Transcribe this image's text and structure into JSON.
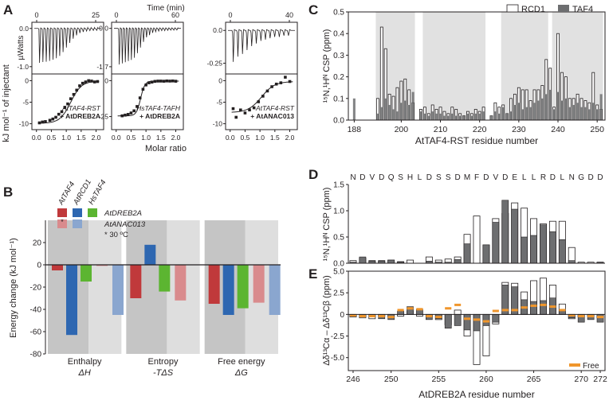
{
  "panel_labels": [
    "A",
    "B",
    "C",
    "D",
    "E"
  ],
  "colors": {
    "red": "#c0393b",
    "red_light": "#d98b8d",
    "blue": "#2e67b1",
    "blue_light": "#8aa6cf",
    "green": "#5cb531",
    "dark_grey": "#6d6e70",
    "orange": "#f0962c",
    "bg_dark": "#c5c5c5",
    "bg_light": "#dedede",
    "shade": "#e1e1e1"
  },
  "chart_data": [
    {
      "id": "A",
      "type": "line",
      "title": "Time (min)",
      "ylabel_top": "µWatts",
      "ylabel_bottom": "kJ mol⁻¹ of injectant",
      "xlabel": "Molar ratio",
      "xticks_bottom": [
        "0.0",
        "0.5",
        "1.0",
        "1.5",
        "2.0"
      ],
      "subpanels": [
        {
          "time_ticks": [
            "0",
            "25"
          ],
          "time_max": 25,
          "top_yticks": [
            "0.0",
            "-1.0"
          ],
          "top_ylim": [
            -1.15,
            0.12
          ],
          "bottom_yticks": [
            "0",
            "-5",
            "-10"
          ],
          "bottom_ylim": [
            -11,
            1
          ],
          "label_line1": "AtTAF4-RST",
          "label_line2": "+ AtDREB2A",
          "label_color": "red",
          "peaks": [
            -0.9,
            -0.88,
            -0.87,
            -0.85,
            -0.82,
            -0.78,
            -0.72,
            -0.62,
            -0.5,
            -0.38,
            -0.27,
            -0.18,
            -0.12,
            -0.09,
            -0.07,
            -0.06,
            -0.05,
            -0.05
          ],
          "points_x": [
            0.1,
            0.2,
            0.3,
            0.45,
            0.55,
            0.65,
            0.75,
            0.85,
            0.95,
            1.05,
            1.15,
            1.25,
            1.35,
            1.45,
            1.55,
            1.65,
            1.75,
            1.85,
            1.95,
            2.05
          ],
          "points_y": [
            -9.8,
            -9.6,
            -9.5,
            -9.2,
            -8.9,
            -8.5,
            -7.8,
            -7.2,
            -6.2,
            -5.4,
            -4.2,
            -3.2,
            -2.2,
            -1.2,
            -0.6,
            -0.3,
            0.0,
            -0.1,
            -0.3,
            -0.2
          ],
          "fit": {
            "bottom": -9.9,
            "top": -0.1,
            "mid": 1.15,
            "width": 0.18
          }
        },
        {
          "time_ticks": [
            "0",
            "60"
          ],
          "time_max": 60,
          "top_yticks": [
            "0.0",
            "-1.7"
          ],
          "top_ylim": [
            -1.95,
            0.2
          ],
          "bottom_yticks": [
            "0",
            "-25"
          ],
          "bottom_ylim": [
            -33,
            3
          ],
          "label_line1": "HsTAF4-TAFH",
          "label_line2": "+ AtDREB2A",
          "label_color": "green",
          "peaks": [
            -1.6,
            -1.55,
            -1.5,
            -1.45,
            -1.4,
            -1.3,
            -1.1,
            -0.85,
            -0.6,
            -0.4,
            -0.3,
            -0.2,
            -0.15,
            -0.12,
            -0.1,
            -0.1,
            -0.09,
            -0.08,
            -0.08,
            -0.07
          ],
          "points_x": [
            0.2,
            0.3,
            0.4,
            0.5,
            0.6,
            0.7,
            0.8,
            0.9,
            1.0,
            1.1,
            1.2,
            1.3,
            1.4,
            1.5,
            1.6,
            1.7,
            1.8,
            1.9,
            2.0
          ],
          "points_y": [
            -24.5,
            -24,
            -23.5,
            -22.5,
            -21,
            -18,
            -12,
            -6,
            -3,
            -1.5,
            -1,
            -0.5,
            -0.3,
            -0.3,
            -0.4,
            -0.2,
            -0.3,
            -0.2,
            -0.4
          ],
          "fit": {
            "bottom": -24.5,
            "top": -0.3,
            "mid": 0.82,
            "width": 0.07
          }
        },
        {
          "time_ticks": [
            "0",
            "40"
          ],
          "time_max": 40,
          "top_yticks": [
            "0.0",
            "-0.25"
          ],
          "top_ylim": [
            -0.32,
            0.05
          ],
          "bottom_yticks": [
            "0",
            "-5",
            "-10"
          ],
          "bottom_ylim": [
            -11,
            1
          ],
          "label_line1": "AtTAF4-RST",
          "label_line2": "+ AtANAC013",
          "label_color": "red_light",
          "peaks": [
            -0.24,
            -0.2,
            -0.18,
            -0.15,
            -0.12,
            -0.1,
            -0.08,
            -0.07,
            -0.06,
            -0.05,
            -0.05,
            -0.04,
            -0.04
          ],
          "points_x": [
            0.1,
            0.2,
            0.35,
            0.5,
            0.65,
            0.8,
            0.95,
            1.1,
            1.25,
            1.4,
            1.55,
            1.7,
            1.85,
            2.0
          ],
          "points_y": [
            -6.5,
            -8.5,
            -6.8,
            -7.5,
            -6.8,
            -6.3,
            -4.9,
            -3.6,
            -2.4,
            -1.4,
            -0.8,
            -0.5,
            0.8,
            -0.2
          ],
          "fit": {
            "bottom": -7.4,
            "top": -0.2,
            "mid": 1.05,
            "width": 0.22
          }
        }
      ]
    },
    {
      "id": "B",
      "type": "bar",
      "ylabel": "Energy change (kJ mol⁻¹)",
      "ylim": [
        -80,
        40
      ],
      "yticks": [
        20,
        0,
        -20,
        -40,
        -60,
        -80
      ],
      "groups": [
        {
          "label": "Enthalpy",
          "symbol": "ΔH"
        },
        {
          "label": "Entropy",
          "symbol": "-TΔS"
        },
        {
          "label": "Free energy",
          "symbol": "ΔG"
        }
      ],
      "series": [
        {
          "name": "AtTAF4 + AtDREB2A",
          "color": "red",
          "values": [
            -5,
            -30,
            -35
          ]
        },
        {
          "name": "AtRCD1 + AtDREB2A",
          "color": "blue",
          "values": [
            -63,
            18,
            -45
          ]
        },
        {
          "name": "HsTAF4 + AtDREB2A",
          "color": "green",
          "values": [
            -15,
            -24,
            -39
          ]
        },
        {
          "name": "AtTAF4 + AtANAC013",
          "color": "red_light",
          "values": [
            -1,
            -32,
            -34
          ]
        },
        {
          "name": "AtRCD1 + AtANAC013",
          "color": "blue_light",
          "values": [
            -45,
            0,
            -45
          ]
        }
      ],
      "legend": {
        "columns": [
          "AtTAF4",
          "AtRCD1",
          "HsTAF4"
        ],
        "rows": [
          "AtDREB2A",
          "AtANAC013"
        ],
        "note": "* 30 ºC",
        "star_mark": "*"
      }
    },
    {
      "id": "C",
      "type": "bar",
      "ylabel": "¹⁵N,¹Hᴺ CSP (ppm)",
      "xlabel": "AtTAF4-RST residue number",
      "ylim": [
        0,
        0.5
      ],
      "yticks": [
        "0.0",
        "0.1",
        "0.2",
        "0.3",
        "0.4",
        "0.5"
      ],
      "xlim": [
        186.5,
        252
      ],
      "xticks": [
        188,
        200,
        210,
        220,
        230,
        240,
        250
      ],
      "shaded_ranges": [
        [
          193.5,
          203.5
        ],
        [
          205.5,
          221.5
        ],
        [
          225.5,
          237.5
        ],
        [
          238.5,
          251.5
        ]
      ],
      "legend": [
        "RCD1",
        "TAF4"
      ],
      "residues": [
        188,
        189,
        190,
        191,
        192,
        193,
        194,
        195,
        196,
        197,
        198,
        199,
        200,
        201,
        202,
        203,
        204,
        205,
        206,
        207,
        208,
        209,
        210,
        211,
        212,
        213,
        214,
        215,
        216,
        217,
        218,
        219,
        220,
        221,
        222,
        223,
        224,
        225,
        226,
        227,
        228,
        229,
        230,
        231,
        232,
        233,
        234,
        235,
        236,
        237,
        238,
        239,
        240,
        241,
        242,
        243,
        244,
        245,
        246,
        247,
        248,
        249,
        250,
        251
      ],
      "rcd1": [
        0,
        0,
        0,
        0,
        0,
        0,
        0.1,
        0.43,
        0.33,
        0.12,
        0.11,
        0.15,
        0.18,
        0.19,
        0.14,
        0.08,
        0,
        0.05,
        0.06,
        0.03,
        0.07,
        0.05,
        0.06,
        0.04,
        0.03,
        0.06,
        0.05,
        0.03,
        0.02,
        0.04,
        0.03,
        0.05,
        0.04,
        0.06,
        0,
        0.02,
        0.08,
        0.06,
        0.07,
        0.03,
        0.1,
        0.12,
        0.15,
        0.14,
        0.14,
        0.09,
        0.14,
        0.14,
        0.16,
        0.28,
        0.24,
        0.06,
        0.4,
        0.22,
        0.2,
        0.1,
        0.1,
        0.12,
        0.1,
        0.09,
        0.08,
        0.22,
        0.07,
        0.05
      ],
      "taf4": [
        0.1,
        0,
        0,
        0,
        0,
        0,
        0.03,
        0.06,
        0.1,
        0.07,
        0.05,
        0.04,
        0.08,
        0.09,
        0.07,
        0.13,
        0,
        0.04,
        0.03,
        0.02,
        0.04,
        0.03,
        0.03,
        0.02,
        0.02,
        0.03,
        0.02,
        0.02,
        0.02,
        0.03,
        0.02,
        0.03,
        0.03,
        0.04,
        0,
        0.02,
        0.04,
        0.03,
        0.06,
        0.03,
        0.04,
        0.07,
        0.08,
        0.05,
        0.06,
        0.06,
        0.08,
        0.09,
        0.1,
        0.12,
        0.14,
        0.05,
        0.13,
        0.09,
        0.1,
        0.06,
        0.07,
        0.08,
        0.06,
        0.06,
        0.05,
        0.08,
        0.05,
        0.12
      ]
    },
    {
      "id": "D",
      "type": "bar",
      "ylabel": "¹⁵N,¹Hᴺ CSP (ppm)",
      "ylim": [
        0,
        1.5
      ],
      "yticks": [
        "0.0",
        "0.5",
        "1.0",
        "1.5"
      ],
      "sequence": [
        "N",
        "D",
        "V",
        "D",
        "Q",
        "S",
        "H",
        "L",
        "D",
        "S",
        "S",
        "D",
        "M",
        "F",
        "D",
        "V",
        "D",
        "E",
        "L",
        "L",
        "R",
        "D",
        "L",
        "N",
        "G",
        "D",
        "D"
      ],
      "rcd1": [
        0.05,
        0.1,
        0.05,
        0.05,
        0.06,
        0.03,
        0.06,
        0,
        0.12,
        0.06,
        0.08,
        0.12,
        0.55,
        0.9,
        0.35,
        0.85,
        0.95,
        1.15,
        1.05,
        0.85,
        0.75,
        0.8,
        0.8,
        0.3,
        0.02,
        0.02,
        0.02
      ],
      "taf4": [
        0.02,
        0.12,
        0.04,
        0.04,
        0.06,
        0.02,
        0,
        0,
        0.04,
        0.02,
        0.02,
        0.07,
        0.37,
        0,
        0.35,
        0.78,
        1.2,
        1.03,
        0.5,
        0.53,
        0.73,
        0.6,
        0.45,
        0.05,
        0,
        0,
        0.02
      ]
    },
    {
      "id": "E",
      "type": "bar",
      "ylabel": "Δδ¹³Cα – Δδ¹³Cβ (ppm)",
      "xlabel": "AtDREB2A residue number",
      "ylim": [
        -6.5,
        5
      ],
      "yticks": [
        "5.0",
        "2.5",
        "0",
        "-2.5",
        "-5.0"
      ],
      "residues": [
        246,
        247,
        248,
        249,
        250,
        251,
        252,
        253,
        254,
        255,
        256,
        257,
        258,
        259,
        260,
        261,
        262,
        263,
        264,
        265,
        266,
        267,
        268,
        269,
        270,
        271,
        272
      ],
      "xticks": [
        246,
        250,
        255,
        260,
        265,
        270,
        272
      ],
      "rcd1": [
        -0.3,
        -0.4,
        -0.5,
        -0.2,
        -0.3,
        -0.2,
        0.4,
        -0.2,
        -0.3,
        -0.6,
        -1.2,
        0.5,
        -2.5,
        -5.8,
        -4.8,
        -1.1,
        3.7,
        3.6,
        2.6,
        3.9,
        4.2,
        3.4,
        1.2,
        -0.5,
        -0.3,
        -0.2,
        -0.4
      ],
      "taf4": [
        -0.2,
        -0.3,
        -0.3,
        -0.5,
        -0.6,
        0.4,
        0.9,
        0.6,
        -0.6,
        -0.5,
        -1.6,
        -1.3,
        -1.8,
        -1.9,
        -1.3,
        -0.9,
        3.4,
        3.2,
        1.7,
        1.5,
        1.6,
        1.9,
        0.4,
        -0.4,
        -0.9,
        -0.6,
        -0.9
      ],
      "free": [
        -0.1,
        -0.2,
        -0.2,
        -0.2,
        -0.3,
        0.5,
        0.7,
        0.6,
        -0.2,
        -0.3,
        0.7,
        1.1,
        -0.5,
        -0.6,
        -0.8,
        0.4,
        0.5,
        0.5,
        0.8,
        1.0,
        1.1,
        0.9,
        0.5,
        -0.1,
        -0.2,
        -0.2,
        -0.3
      ],
      "legend": "Free"
    }
  ]
}
